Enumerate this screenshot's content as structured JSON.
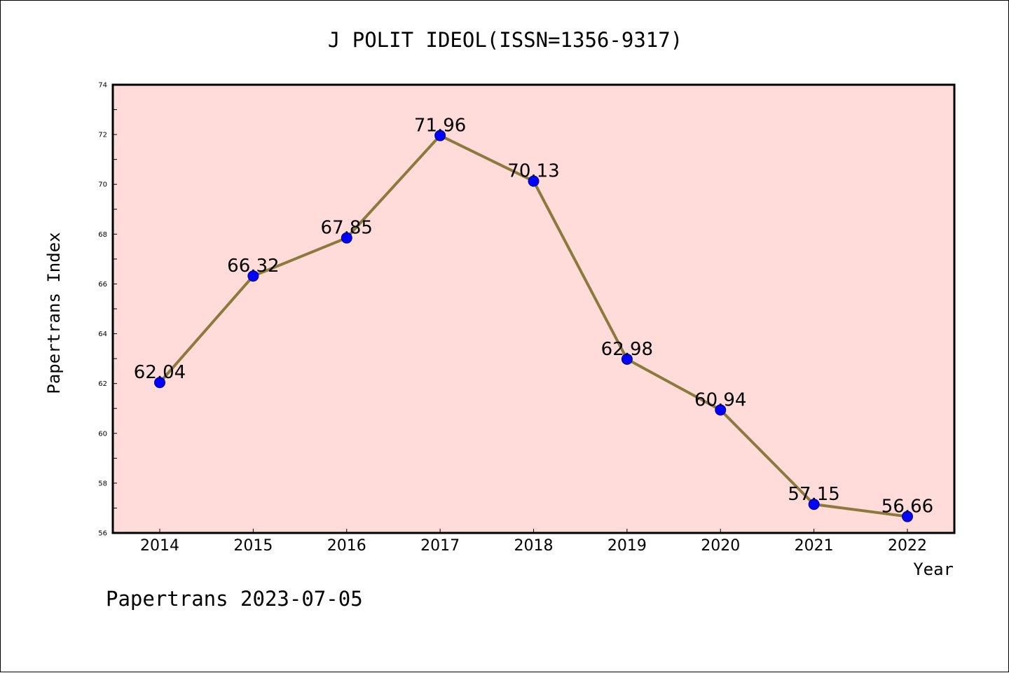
{
  "chart_data": {
    "type": "line",
    "title": "J POLIT IDEOL(ISSN=1356-9317)",
    "xlabel": "Year",
    "ylabel": "Papertrans Index",
    "categories": [
      "2014",
      "2015",
      "2016",
      "2017",
      "2018",
      "2019",
      "2020",
      "2021",
      "2022"
    ],
    "series": [
      {
        "values": [
          62.04,
          66.32,
          67.85,
          71.96,
          70.13,
          62.98,
          60.94,
          57.15,
          56.66
        ],
        "line_color": "#8c7a3c",
        "marker_color": "#0000ff"
      }
    ],
    "ylim": [
      56,
      74
    ],
    "yticks": [
      "56",
      "58",
      "60",
      "62",
      "64",
      "66",
      "68",
      "70",
      "72",
      "74"
    ],
    "data_labels": [
      "62.04",
      "66.32",
      "67.85",
      "71.96",
      "70.13",
      "62.98",
      "60.94",
      "57.15",
      "56.66"
    ],
    "grid": false,
    "plot_background": "#ffdcd9"
  },
  "footer": "Papertrans 2023-07-05"
}
